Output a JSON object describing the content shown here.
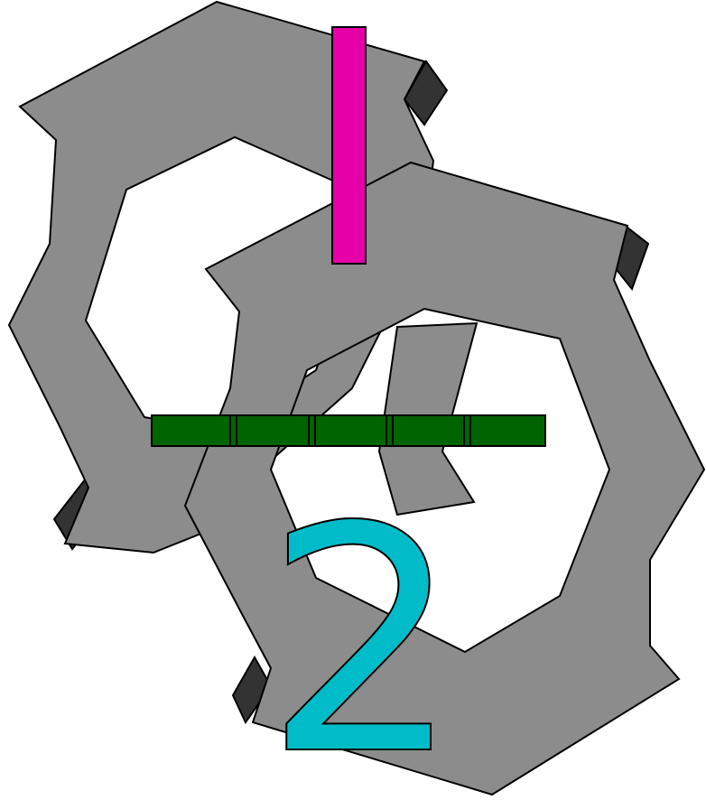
{
  "scene": {
    "digit": "2",
    "colors": {
      "ring_face": "#8c8c8c",
      "ring_shadow": "#3a3a3a",
      "outline": "#000000",
      "vertical_bar": "#e600a8",
      "horizontal_bar": "#006400",
      "digit": "#00bcc8",
      "background": "#ffffff"
    },
    "horizontal_bar_segments": 5,
    "shapes": [
      "ring-top-left",
      "ring-bottom-right",
      "vertical-bar",
      "horizontal-bar",
      "digit-two"
    ]
  }
}
